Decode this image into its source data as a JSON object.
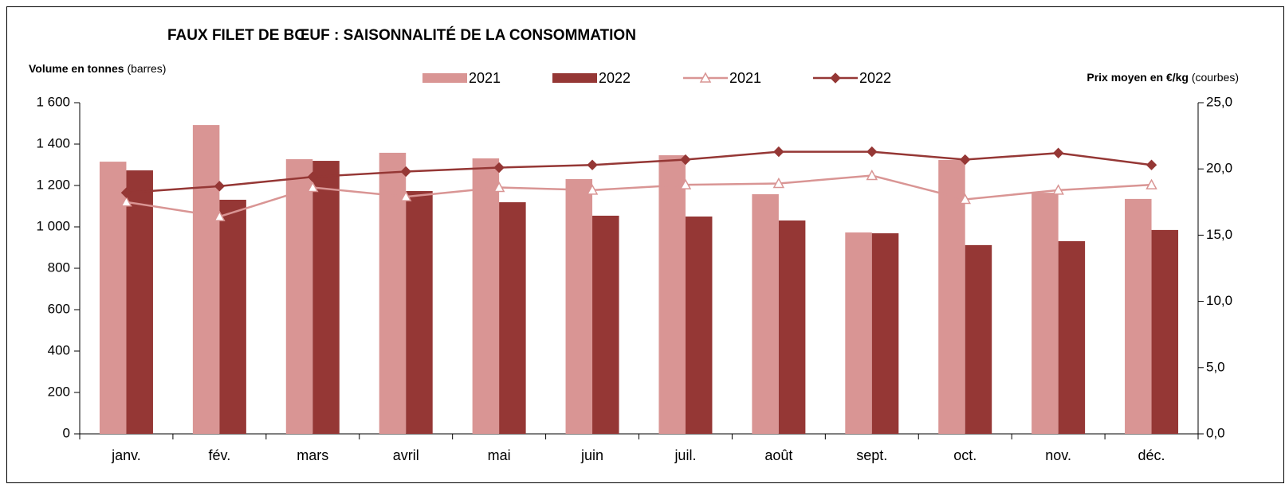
{
  "chart_data": {
    "type": "bar",
    "title": "FAUX FILET DE BŒUF : SAISONNALITÉ DE LA CONSOMMATION",
    "y_label": {
      "bold": "Volume en tonnes",
      "normal": "(barres)"
    },
    "y2_label": {
      "bold": "Prix moyen en €/kg",
      "normal": "(courbes)"
    },
    "categories": [
      "janv.",
      "fév.",
      "mars",
      "avril",
      "mai",
      "juin",
      "juil.",
      "août",
      "sept.",
      "oct.",
      "nov.",
      "déc."
    ],
    "series": [
      {
        "name": "2021",
        "type": "bar",
        "color": "#d99594",
        "values": [
          1315,
          1492,
          1327,
          1358,
          1331,
          1231,
          1346,
          1158,
          973,
          1323,
          1165,
          1135
        ]
      },
      {
        "name": "2022",
        "type": "bar",
        "color": "#953735",
        "values": [
          1273,
          1131,
          1319,
          1173,
          1119,
          1054,
          1050,
          1031,
          969,
          912,
          931,
          985
        ]
      },
      {
        "name": "2021",
        "type": "line",
        "axis": "y2",
        "marker": "triangle",
        "color": "#d99594",
        "values": [
          17.5,
          16.4,
          18.6,
          17.9,
          18.6,
          18.4,
          18.8,
          18.9,
          19.5,
          17.7,
          18.4,
          18.8
        ]
      },
      {
        "name": "2022",
        "type": "line",
        "axis": "y2",
        "marker": "diamond",
        "color": "#953735",
        "values": [
          18.2,
          18.7,
          19.4,
          19.8,
          20.1,
          20.3,
          20.7,
          21.3,
          21.3,
          20.7,
          21.2,
          20.3
        ]
      }
    ],
    "ylim": [
      0,
      1600
    ],
    "yticks": [
      0,
      200,
      400,
      600,
      800,
      {
        "value": 1000,
        "label": "1 000"
      },
      {
        "value": 1200,
        "label": "1 200"
      },
      {
        "value": 1400,
        "label": "1 400"
      },
      {
        "value": 1600,
        "label": "1 600"
      }
    ],
    "y2lim": [
      0,
      25
    ],
    "y2ticks": [
      {
        "value": 0,
        "label": "0,0"
      },
      {
        "value": 5,
        "label": "5,0"
      },
      {
        "value": 10,
        "label": "10,0"
      },
      {
        "value": 15,
        "label": "15,0"
      },
      {
        "value": 20,
        "label": "20,0"
      },
      {
        "value": 25,
        "label": "25,0"
      }
    ],
    "grid": false
  }
}
